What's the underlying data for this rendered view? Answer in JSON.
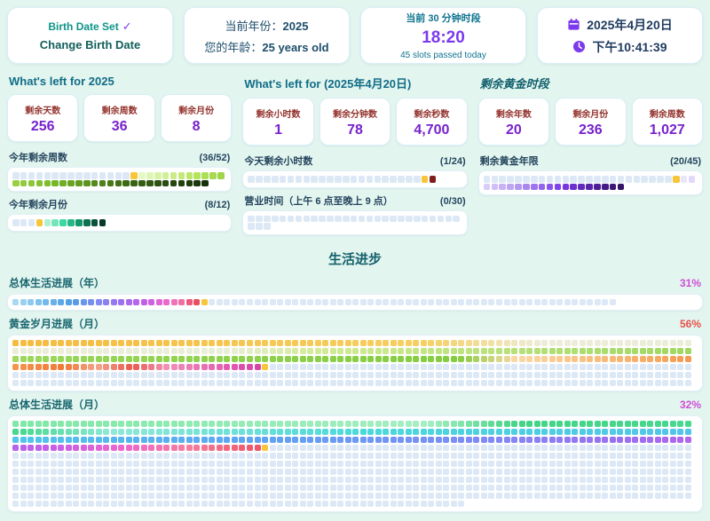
{
  "theme": {
    "background": "#e3f5ef",
    "pale_square": "#dce8f5",
    "current_square": "#f6c539",
    "accent_purple": "#7c3aed",
    "stat_value_purple": "#7722cc",
    "stat_label_red": "#93322c",
    "teal_header": "#116d87"
  },
  "top_cards": {
    "birth": {
      "status": "Birth Date Set",
      "check": "✓",
      "action": "Change Birth Date"
    },
    "year": {
      "line1_label": "当前年份：",
      "line1_value": "2025",
      "line2_label": "您的年龄：",
      "line2_value": "25 years old"
    },
    "slot": {
      "title": "当前 30 分钟时段",
      "time": "18:20",
      "subtitle": "45 slots passed today"
    },
    "datetime": {
      "date": "2025年4月20日",
      "time": "下午10:41:39"
    }
  },
  "left_sections": [
    {
      "title": "What's left for 2025",
      "stats": [
        {
          "label": "剩余天数",
          "value": "256"
        },
        {
          "label": "剩余周数",
          "value": "36"
        },
        {
          "label": "剩余月份",
          "value": "8"
        }
      ],
      "grids": [
        {
          "label": "今年剩余周数",
          "fraction": "(36/52)",
          "total": 52,
          "passed": 15,
          "has_current": true,
          "mode": "remaining_colored",
          "stops": [
            [
              0,
              "#e6f8c4"
            ],
            [
              0.2,
              "#b5e35b"
            ],
            [
              0.45,
              "#7ab82a"
            ],
            [
              0.7,
              "#3f6b14"
            ],
            [
              1,
              "#16300a"
            ]
          ]
        },
        {
          "label": "今年剩余月份",
          "fraction": "(8/12)",
          "total": 12,
          "passed": 3,
          "has_current": true,
          "mode": "remaining_colored",
          "stops": [
            [
              0,
              "#aff0d4"
            ],
            [
              0.3,
              "#36d69f"
            ],
            [
              0.6,
              "#0f8f63"
            ],
            [
              0.8,
              "#0b5c40"
            ],
            [
              1,
              "#073b28"
            ]
          ]
        }
      ]
    },
    {
      "title": "What's left for (2025年4月20日)",
      "stats": [
        {
          "label": "剩余小时数",
          "value": "1"
        },
        {
          "label": "剩余分钟数",
          "value": "78"
        },
        {
          "label": "剩余秒数",
          "value": "4,700"
        }
      ],
      "grids": [
        {
          "label": "今天剩余小时数",
          "fraction": "(1/24)",
          "total": 24,
          "passed": 22,
          "has_current": true,
          "mode": "remaining_colored",
          "stops": [
            [
              0,
              "#7f1d1d"
            ],
            [
              1,
              "#7f1d1d"
            ]
          ]
        },
        {
          "label": "营业时间（上午 6 点至晚上 9 点）",
          "fraction": "(0/30)",
          "total": 30,
          "passed": 30,
          "has_current": false,
          "mode": "remaining_colored",
          "stops": []
        }
      ]
    },
    {
      "title": "剩余黄金时段",
      "stats": [
        {
          "label": "剩余年数",
          "value": "20"
        },
        {
          "label": "剩余月份",
          "value": "236"
        },
        {
          "label": "剩余周数",
          "value": "1,027"
        }
      ],
      "grids": [
        {
          "label": "剩余黄金年限",
          "fraction": "(20/45)",
          "total": 45,
          "passed": 24,
          "has_current": true,
          "mode": "remaining_colored",
          "stops": [
            [
              0,
              "#ebe5fc"
            ],
            [
              0.3,
              "#b79df0"
            ],
            [
              0.6,
              "#7c3aed"
            ],
            [
              0.85,
              "#4c1d95"
            ],
            [
              1,
              "#351368"
            ]
          ]
        }
      ]
    }
  ],
  "progress": {
    "title": "生活进步",
    "grids": [
      {
        "label": "总体生活进展（年）",
        "percent": "31%",
        "percent_color": "#cf4ed8",
        "total": 80,
        "passed": 25,
        "has_current": true,
        "mode": "passed_colored",
        "stops": [
          [
            0,
            "#a8d8f2"
          ],
          [
            0.15,
            "#77bdec"
          ],
          [
            0.3,
            "#4f9fe6"
          ],
          [
            0.45,
            "#7e8cf2"
          ],
          [
            0.6,
            "#a26cf0"
          ],
          [
            0.72,
            "#c45ee8"
          ],
          [
            0.82,
            "#e866d2"
          ],
          [
            0.9,
            "#f278af"
          ],
          [
            0.95,
            "#ee5b82"
          ],
          [
            1,
            "#e84f5e"
          ]
        ]
      },
      {
        "label": "黄金岁月进展（月）",
        "percent": "56%",
        "percent_color": "#e8504a",
        "total": 540,
        "passed": 303,
        "has_current": true,
        "mode": "passed_colored",
        "stops": [
          [
            0,
            "#f4bc3f"
          ],
          [
            0.18,
            "#f7cf62"
          ],
          [
            0.23,
            "#edecd9"
          ],
          [
            0.39,
            "#e9eed8"
          ],
          [
            0.43,
            "#d3ea96"
          ],
          [
            0.62,
            "#97d557"
          ],
          [
            0.79,
            "#84cc3f"
          ],
          [
            0.815,
            "#fbd8a6"
          ],
          [
            0.88,
            "#f6a75e"
          ],
          [
            0.915,
            "#ef7a36"
          ],
          [
            0.93,
            "#f2a38c"
          ],
          [
            0.945,
            "#e85a4e"
          ],
          [
            0.96,
            "#f191b5"
          ],
          [
            0.985,
            "#e35fb2"
          ],
          [
            1,
            "#d645a5"
          ]
        ]
      },
      {
        "label": "总体生活进展（月）",
        "percent": "32%",
        "percent_color": "#cf4ed8",
        "total": 960,
        "passed": 303,
        "has_current": true,
        "mode": "passed_colored",
        "stops": [
          [
            0,
            "#7fe8a6"
          ],
          [
            0.18,
            "#a5eec2"
          ],
          [
            0.22,
            "#44d485"
          ],
          [
            0.3,
            "#47d88f"
          ],
          [
            0.34,
            "#8fe9d6"
          ],
          [
            0.45,
            "#4ad9da"
          ],
          [
            0.6,
            "#52c4ea"
          ],
          [
            0.7,
            "#5ea4f2"
          ],
          [
            0.8,
            "#7e8bf5"
          ],
          [
            0.87,
            "#9e6cf2"
          ],
          [
            0.91,
            "#c55fe8"
          ],
          [
            0.94,
            "#ec66cf"
          ],
          [
            0.97,
            "#f57d9e"
          ],
          [
            1,
            "#ef5668"
          ]
        ]
      }
    ]
  }
}
